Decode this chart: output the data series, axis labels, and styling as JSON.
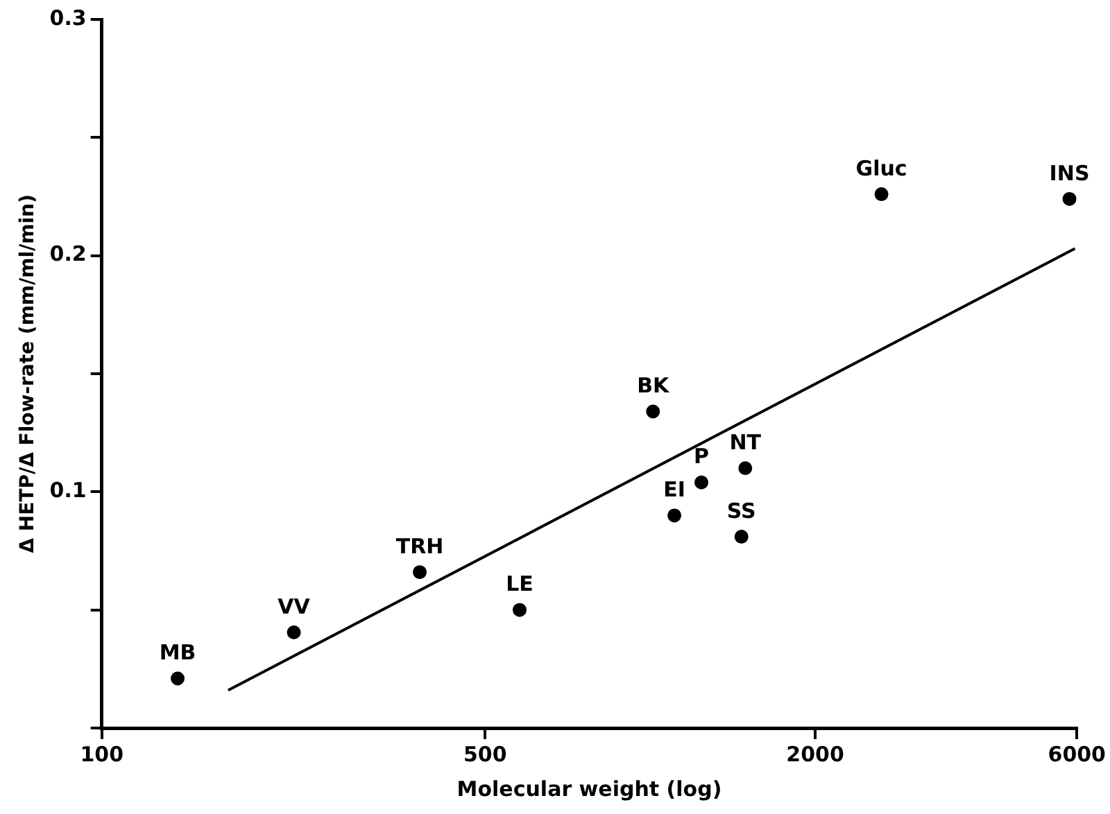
{
  "chart_data": {
    "type": "scatter",
    "xlabel": "Molecular weight (log)",
    "ylabel": "Δ HETP/Δ Flow-rate (mm/ml/min)",
    "log": "x",
    "xlim": [
      100,
      6000
    ],
    "xticks": [
      100,
      500,
      2000,
      6000
    ],
    "ylim": [
      0,
      0.3
    ],
    "yticks": [
      {
        "value": 0,
        "label": null
      },
      {
        "value": 0.05,
        "label": null
      },
      0.1,
      {
        "value": 0.15,
        "label": null
      },
      0.2,
      {
        "value": 0.25,
        "label": null
      },
      0.3
    ],
    "grid": false,
    "legend": false,
    "marker": "circle",
    "series": [
      {
        "color": "#000000",
        "x": [
          137.5,
          224,
          380,
          578,
          1012,
          1107,
          1240,
          1491,
          1467,
          2641,
          5816
        ],
        "values": [
          0.021,
          0.0405,
          0.066,
          0.05,
          0.134,
          0.09,
          0.104,
          0.11,
          0.081,
          0.226,
          0.224
        ]
      },
      {
        "type": "line",
        "color": "#000000",
        "marker": "none",
        "x": [
          170,
          5950
        ],
        "values": [
          0.016,
          0.203
        ]
      }
    ],
    "annotations": [
      {
        "text": "MB",
        "x": 137.5,
        "y": 0.021
      },
      {
        "text": "VV",
        "x": 224,
        "y": 0.0405
      },
      {
        "text": "TRH",
        "x": 380,
        "y": 0.066
      },
      {
        "text": "LE",
        "x": 578,
        "y": 0.05
      },
      {
        "text": "BK",
        "x": 1012,
        "y": 0.134
      },
      {
        "text": "EI",
        "x": 1107,
        "y": 0.09
      },
      {
        "text": "P",
        "x": 1240,
        "y": 0.104
      },
      {
        "text": "NT",
        "x": 1491,
        "y": 0.11
      },
      {
        "text": "SS",
        "x": 1467,
        "y": 0.081
      },
      {
        "text": "Gluc",
        "x": 2641,
        "y": 0.226
      },
      {
        "text": "INS",
        "x": 5816,
        "y": 0.224
      }
    ]
  }
}
